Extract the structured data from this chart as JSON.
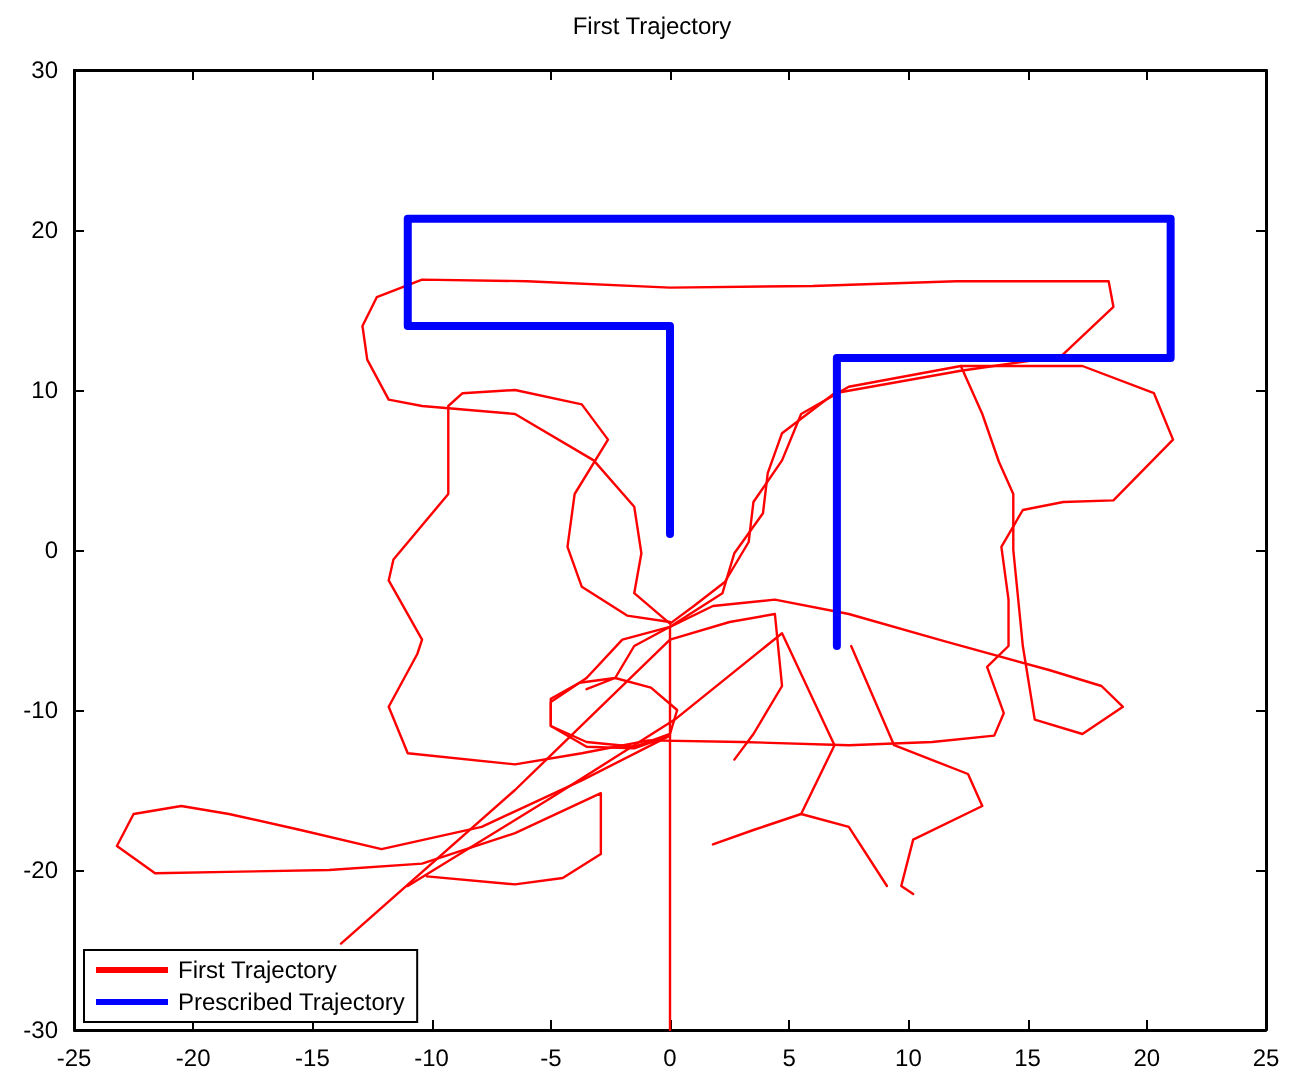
{
  "chart_data": {
    "type": "line",
    "title": "First Trajectory",
    "xlim": [
      -25,
      25
    ],
    "xticks": [
      -25,
      -20,
      -15,
      -10,
      -5,
      0,
      5,
      10,
      15,
      20,
      25
    ],
    "ylim": [
      -30,
      30
    ],
    "yticks": [
      -30,
      -20,
      -10,
      0,
      10,
      20,
      30
    ],
    "grid": false,
    "legend": "bottom left",
    "marker": "none",
    "line_style": "solid",
    "series": [
      {
        "name": "First Trajectory",
        "color": "#ff0000",
        "x": [
          0,
          0
        ],
        "values": [
          -30,
          -4.8
        ]
      },
      {
        "color": "#ff0000",
        "x": [
          0,
          -1.5,
          -1.2,
          -1.5,
          -3.2,
          -6.5,
          -10.4,
          -11.8,
          -12.7,
          -12.9,
          -12.3,
          -10.4,
          -6,
          0,
          6,
          12,
          18.4,
          18.6,
          16.4,
          12.2,
          6.9,
          4.7,
          4.1,
          3.9,
          2.7,
          2.2,
          0,
          -2,
          -3.5,
          -5,
          -5,
          -3.5,
          -1.5,
          0,
          -3.7,
          -7.9,
          -12.1,
          -15.5,
          -18.5,
          -20.5,
          -22.5,
          -23.2,
          -21.6,
          -18,
          -14.3,
          -10.4,
          -6.5,
          -2.9,
          -2.9,
          -2.9,
          -4.5,
          -6.5,
          -10.2
        ],
        "values": [
          -4.6,
          -2.7,
          -0.2,
          2.7,
          5.6,
          8.5,
          9,
          9.4,
          11.9,
          14,
          15.8,
          16.9,
          16.8,
          16.4,
          16.5,
          16.8,
          16.8,
          15.2,
          12.1,
          11.2,
          9.8,
          7.3,
          4.8,
          2.3,
          -0.2,
          -2.7,
          -4.8,
          -5.6,
          -8,
          -9.5,
          -11,
          -12.3,
          -12.4,
          -11.6,
          -14.4,
          -17.3,
          -18.7,
          -17.5,
          -16.5,
          -16,
          -16.5,
          -18.5,
          -20.2,
          -20.1,
          -20,
          -19.6,
          -17.7,
          -15.2,
          -17,
          -19,
          -20.5,
          -20.9,
          -20.4
        ]
      },
      {
        "color": "#ff0000",
        "x": [
          0,
          -1.8,
          -3.7,
          -4.3,
          -4,
          -2.6,
          -3.7,
          -6.5,
          -8.7,
          -9.3,
          -9.3,
          -11.6,
          -11.8,
          -10.4,
          -10.6,
          -11.8,
          -11,
          -6.5,
          -3.7,
          -0.9,
          3,
          7.5,
          11,
          13.6,
          14,
          13.3,
          14.2,
          14.2,
          13.9,
          14.8,
          16.5,
          18.6,
          21.1,
          20.3,
          17.3,
          12.2,
          7.5,
          5.5,
          4.7,
          3.5,
          3.3,
          2.3,
          1,
          0
        ],
        "values": [
          -4.5,
          -4.1,
          -2.3,
          0.2,
          3.5,
          6.9,
          9.1,
          10,
          9.8,
          9,
          3.5,
          -0.6,
          -1.9,
          -5.6,
          -6.5,
          -9.8,
          -12.7,
          -13.4,
          -12.7,
          -11.9,
          -12,
          -12.2,
          -12,
          -11.6,
          -10.2,
          -7.3,
          -6,
          -3.1,
          0.2,
          2.5,
          3,
          3.1,
          6.9,
          9.8,
          11.5,
          11.5,
          10.2,
          8.5,
          5.6,
          3,
          0.5,
          -2,
          -3.5,
          -4.6
        ]
      },
      {
        "color": "#ff0000",
        "x": [
          12.2,
          13.1,
          13.8,
          14.4,
          14.4,
          14.6,
          14.8,
          15.3,
          17.3,
          19,
          18.1,
          15.9,
          11.5,
          7.5,
          4.4,
          1.8,
          0,
          -1.5,
          -2.3,
          -3.8,
          -5,
          -5,
          -3.5,
          -1.5,
          0,
          0.3,
          -0.8,
          -2.3,
          -3.5
        ],
        "values": [
          11.5,
          8.5,
          5.5,
          3.5,
          0,
          -3,
          -6,
          -10.6,
          -11.5,
          -9.8,
          -8.5,
          -7.5,
          -5.7,
          -4,
          -3.1,
          -3.5,
          -4.8,
          -6,
          -8,
          -8.3,
          -9.3,
          -11,
          -12,
          -12.3,
          -11.5,
          -10,
          -8.6,
          -8,
          -8.7
        ]
      },
      {
        "color": "#ff0000",
        "x": [
          -13.8,
          -6.5,
          0,
          2.5,
          4.4,
          4.7,
          3.5,
          2.7
        ],
        "values": [
          -24.6,
          -15,
          -5.6,
          -4.5,
          -4,
          -8.5,
          -11.5,
          -13.1
        ]
      },
      {
        "color": "#ff0000",
        "x": [
          -11,
          -5,
          0.2,
          4.7,
          6.9,
          5.5,
          3.5,
          1.8
        ],
        "values": [
          -21,
          -15.5,
          -10.6,
          -5.2,
          -12.2,
          -16.5,
          -17.5,
          -18.4
        ]
      },
      {
        "color": "#ff0000",
        "x": [
          7.6,
          9.4,
          12.5,
          13.1,
          10.2,
          9.7,
          10.2
        ],
        "values": [
          -6,
          -12.2,
          -14,
          -16,
          -18.1,
          -21,
          -21.5
        ]
      },
      {
        "color": "#ff0000",
        "x": [
          5.5,
          7.5,
          9.1
        ],
        "values": [
          -16.5,
          -17.3,
          -21
        ]
      },
      {
        "name": "Prescribed Trajectory",
        "color": "#0000ff",
        "x": [
          0,
          0,
          -11,
          -11,
          21,
          21,
          7,
          7
        ],
        "values": [
          1,
          14,
          14,
          20.7,
          20.7,
          12,
          12,
          -6
        ]
      }
    ]
  }
}
